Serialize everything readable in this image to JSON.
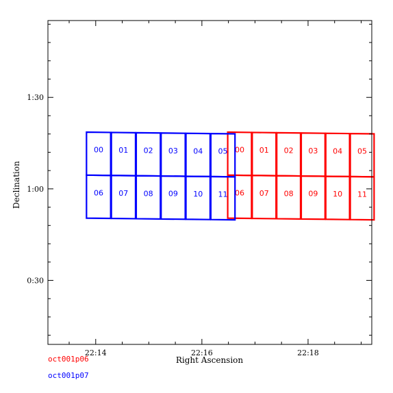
{
  "chart_data": {
    "type": "footprint",
    "xlabel": "Right Ascension",
    "ylabel": "Declination",
    "x_axis_units": "minutes of RA (22h 13.1m at left edge to 22h 19.2m at right edge)",
    "x_axis_direction": "increasing to the right",
    "xlim": [
      13.1,
      19.2
    ],
    "ylim": [
      0.15,
      1.92
    ],
    "x_ticks": [
      {
        "value": 14,
        "label": "22:14"
      },
      {
        "value": 16,
        "label": "22:16"
      },
      {
        "value": 18,
        "label": "22:18"
      }
    ],
    "y_ticks": [
      {
        "value": 0.5,
        "label": "0:30"
      },
      {
        "value": 1.0,
        "label": "1:00"
      },
      {
        "value": 1.5,
        "label": "1:30"
      }
    ],
    "y_axis_units": "degrees",
    "grid": false,
    "legend_placement": "below-left",
    "series": [
      {
        "name": "oct001p06",
        "color": "#ff0000",
        "ra_range_min": [
          16.48,
          19.25
        ],
        "dec_range_deg": [
          0.84,
          1.31
        ],
        "rows": 2,
        "cols": 6,
        "chip_labels": [
          "00",
          "01",
          "02",
          "03",
          "04",
          "05",
          "06",
          "07",
          "08",
          "09",
          "10",
          "11"
        ]
      },
      {
        "name": "oct001p07",
        "color": "#0000ff",
        "ra_range_min": [
          13.82,
          16.63
        ],
        "dec_range_deg": [
          0.84,
          1.31
        ],
        "rows": 2,
        "cols": 6,
        "chip_labels": [
          "00",
          "01",
          "02",
          "03",
          "04",
          "05",
          "06",
          "07",
          "08",
          "09",
          "10",
          "11"
        ]
      }
    ]
  }
}
